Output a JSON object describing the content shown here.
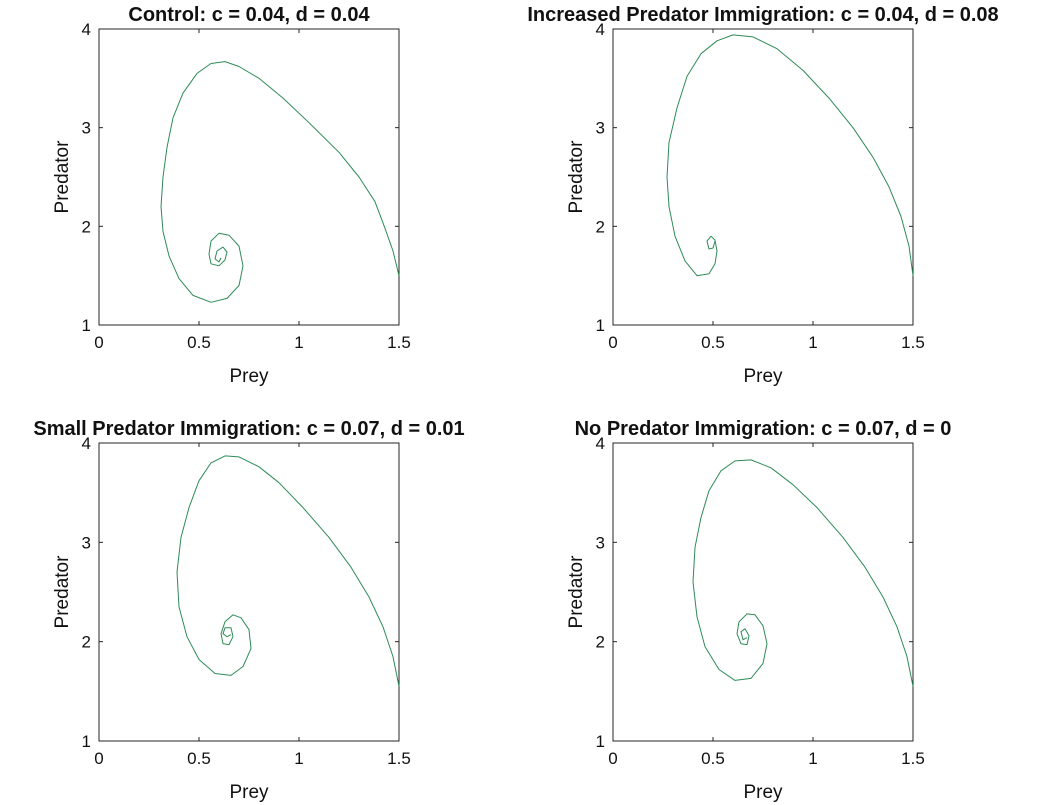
{
  "chart_data": [
    {
      "type": "line",
      "title": "Control: c = 0.04, d = 0.04",
      "xlabel": "Prey",
      "ylabel": "Predator",
      "xlim": [
        0,
        1.5
      ],
      "ylim": [
        1,
        4
      ],
      "xticks": [
        "0",
        "0.5",
        "1",
        "1.5"
      ],
      "yticks": [
        "1",
        "2",
        "3",
        "4"
      ],
      "series": [
        {
          "color": "#2e8b57",
          "x": [
            1.5,
            1.47,
            1.43,
            1.38,
            1.3,
            1.2,
            1.05,
            0.92,
            0.8,
            0.7,
            0.63,
            0.56,
            0.49,
            0.42,
            0.37,
            0.34,
            0.32,
            0.31,
            0.32,
            0.35,
            0.4,
            0.47,
            0.56,
            0.64,
            0.7,
            0.72,
            0.7,
            0.65,
            0.6,
            0.56,
            0.55,
            0.56,
            0.6,
            0.63,
            0.64,
            0.62,
            0.59,
            0.58,
            0.6,
            0.61
          ],
          "y": [
            1.5,
            1.75,
            1.98,
            2.25,
            2.5,
            2.75,
            3.05,
            3.3,
            3.5,
            3.62,
            3.67,
            3.65,
            3.55,
            3.35,
            3.1,
            2.8,
            2.5,
            2.2,
            1.95,
            1.7,
            1.47,
            1.3,
            1.23,
            1.27,
            1.4,
            1.6,
            1.8,
            1.91,
            1.93,
            1.85,
            1.72,
            1.62,
            1.6,
            1.66,
            1.74,
            1.79,
            1.75,
            1.67,
            1.64,
            1.68
          ]
        }
      ]
    },
    {
      "type": "line",
      "title": "Increased Predator Immigration: c = 0.04, d = 0.08",
      "xlabel": "Prey",
      "ylabel": "Predator",
      "xlim": [
        0,
        1.5
      ],
      "ylim": [
        1,
        4
      ],
      "xticks": [
        "0",
        "0.5",
        "1",
        "1.5"
      ],
      "yticks": [
        "1",
        "2",
        "3",
        "4"
      ],
      "series": [
        {
          "color": "#2e8b57",
          "x": [
            1.5,
            1.48,
            1.44,
            1.38,
            1.3,
            1.2,
            1.08,
            0.95,
            0.82,
            0.7,
            0.6,
            0.52,
            0.44,
            0.37,
            0.32,
            0.28,
            0.27,
            0.28,
            0.31,
            0.36,
            0.42,
            0.48,
            0.51,
            0.52,
            0.51,
            0.49,
            0.47,
            0.48,
            0.5,
            0.51
          ],
          "y": [
            1.5,
            1.8,
            2.1,
            2.4,
            2.7,
            3.0,
            3.3,
            3.58,
            3.8,
            3.92,
            3.94,
            3.88,
            3.75,
            3.52,
            3.2,
            2.85,
            2.5,
            2.2,
            1.9,
            1.65,
            1.5,
            1.52,
            1.62,
            1.75,
            1.86,
            1.9,
            1.85,
            1.77,
            1.78,
            1.85
          ]
        }
      ]
    },
    {
      "type": "line",
      "title": "Small Predator Immigration: c = 0.07, d = 0.01",
      "xlabel": "Prey",
      "ylabel": "Predator",
      "xlim": [
        0,
        1.5
      ],
      "ylim": [
        1,
        4
      ],
      "xticks": [
        "0",
        "0.5",
        "1",
        "1.5"
      ],
      "yticks": [
        "1",
        "2",
        "3",
        "4"
      ],
      "series": [
        {
          "color": "#2e8b57",
          "x": [
            1.5,
            1.47,
            1.42,
            1.35,
            1.26,
            1.15,
            1.02,
            0.9,
            0.8,
            0.7,
            0.63,
            0.56,
            0.5,
            0.45,
            0.41,
            0.39,
            0.4,
            0.44,
            0.5,
            0.58,
            0.66,
            0.72,
            0.76,
            0.75,
            0.71,
            0.67,
            0.63,
            0.61,
            0.62,
            0.65,
            0.67,
            0.66,
            0.63,
            0.62,
            0.64,
            0.66
          ],
          "y": [
            1.55,
            1.85,
            2.15,
            2.45,
            2.75,
            3.05,
            3.35,
            3.6,
            3.76,
            3.86,
            3.87,
            3.8,
            3.62,
            3.35,
            3.05,
            2.7,
            2.35,
            2.05,
            1.82,
            1.68,
            1.66,
            1.75,
            1.93,
            2.12,
            2.24,
            2.27,
            2.2,
            2.08,
            1.98,
            1.97,
            2.05,
            2.14,
            2.14,
            2.08,
            2.05,
            2.07
          ]
        }
      ]
    },
    {
      "type": "line",
      "title": "No Predator Immigration: c = 0.07, d = 0",
      "xlabel": "Prey",
      "ylabel": "Predator",
      "xlim": [
        0,
        1.5
      ],
      "ylim": [
        1,
        4
      ],
      "xticks": [
        "0",
        "0.5",
        "1",
        "1.5"
      ],
      "yticks": [
        "1",
        "2",
        "3",
        "4"
      ],
      "series": [
        {
          "color": "#2e8b57",
          "x": [
            1.5,
            1.47,
            1.42,
            1.35,
            1.26,
            1.15,
            1.02,
            0.9,
            0.79,
            0.69,
            0.61,
            0.54,
            0.48,
            0.44,
            0.41,
            0.4,
            0.42,
            0.46,
            0.53,
            0.61,
            0.69,
            0.75,
            0.77,
            0.75,
            0.71,
            0.67,
            0.63,
            0.62,
            0.64,
            0.67,
            0.68,
            0.66,
            0.64,
            0.65,
            0.67
          ],
          "y": [
            1.55,
            1.85,
            2.15,
            2.45,
            2.75,
            3.05,
            3.35,
            3.58,
            3.75,
            3.83,
            3.82,
            3.72,
            3.52,
            3.25,
            2.95,
            2.6,
            2.25,
            1.95,
            1.72,
            1.61,
            1.63,
            1.78,
            1.98,
            2.16,
            2.27,
            2.28,
            2.2,
            2.08,
            1.98,
            1.97,
            2.06,
            2.13,
            2.1,
            2.02,
            2.04
          ]
        }
      ]
    }
  ]
}
